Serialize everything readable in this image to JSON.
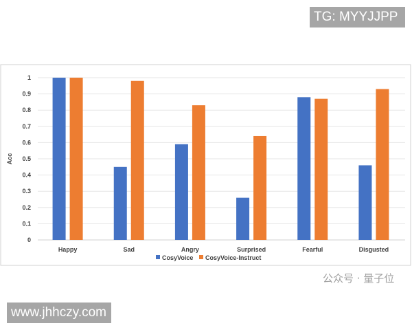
{
  "watermarks": {
    "top_right": "TG: MYYJJPP",
    "bottom_left": "www.jhhczy.com",
    "overlay": "公众号 · 量子位"
  },
  "chart_data": {
    "type": "bar",
    "title": "",
    "xlabel": "",
    "ylabel": "Acc",
    "ylim": [
      0,
      1
    ],
    "yticks": [
      "0",
      "0.1",
      "0.2",
      "0.3",
      "0.4",
      "0.5",
      "0.6",
      "0.7",
      "0.8",
      "0.9",
      "1"
    ],
    "grid": true,
    "legend_position": "bottom",
    "categories": [
      "Happy",
      "Sad",
      "Angry",
      "Surprised",
      "Fearful",
      "Disgusted"
    ],
    "series": [
      {
        "name": "CosyVoice",
        "color": "#4472c4",
        "values": [
          1.0,
          0.45,
          0.59,
          0.26,
          0.88,
          0.46
        ]
      },
      {
        "name": "CosyVoice-Instruct",
        "color": "#ed7d31",
        "values": [
          1.0,
          0.98,
          0.83,
          0.64,
          0.87,
          0.93
        ]
      }
    ]
  }
}
